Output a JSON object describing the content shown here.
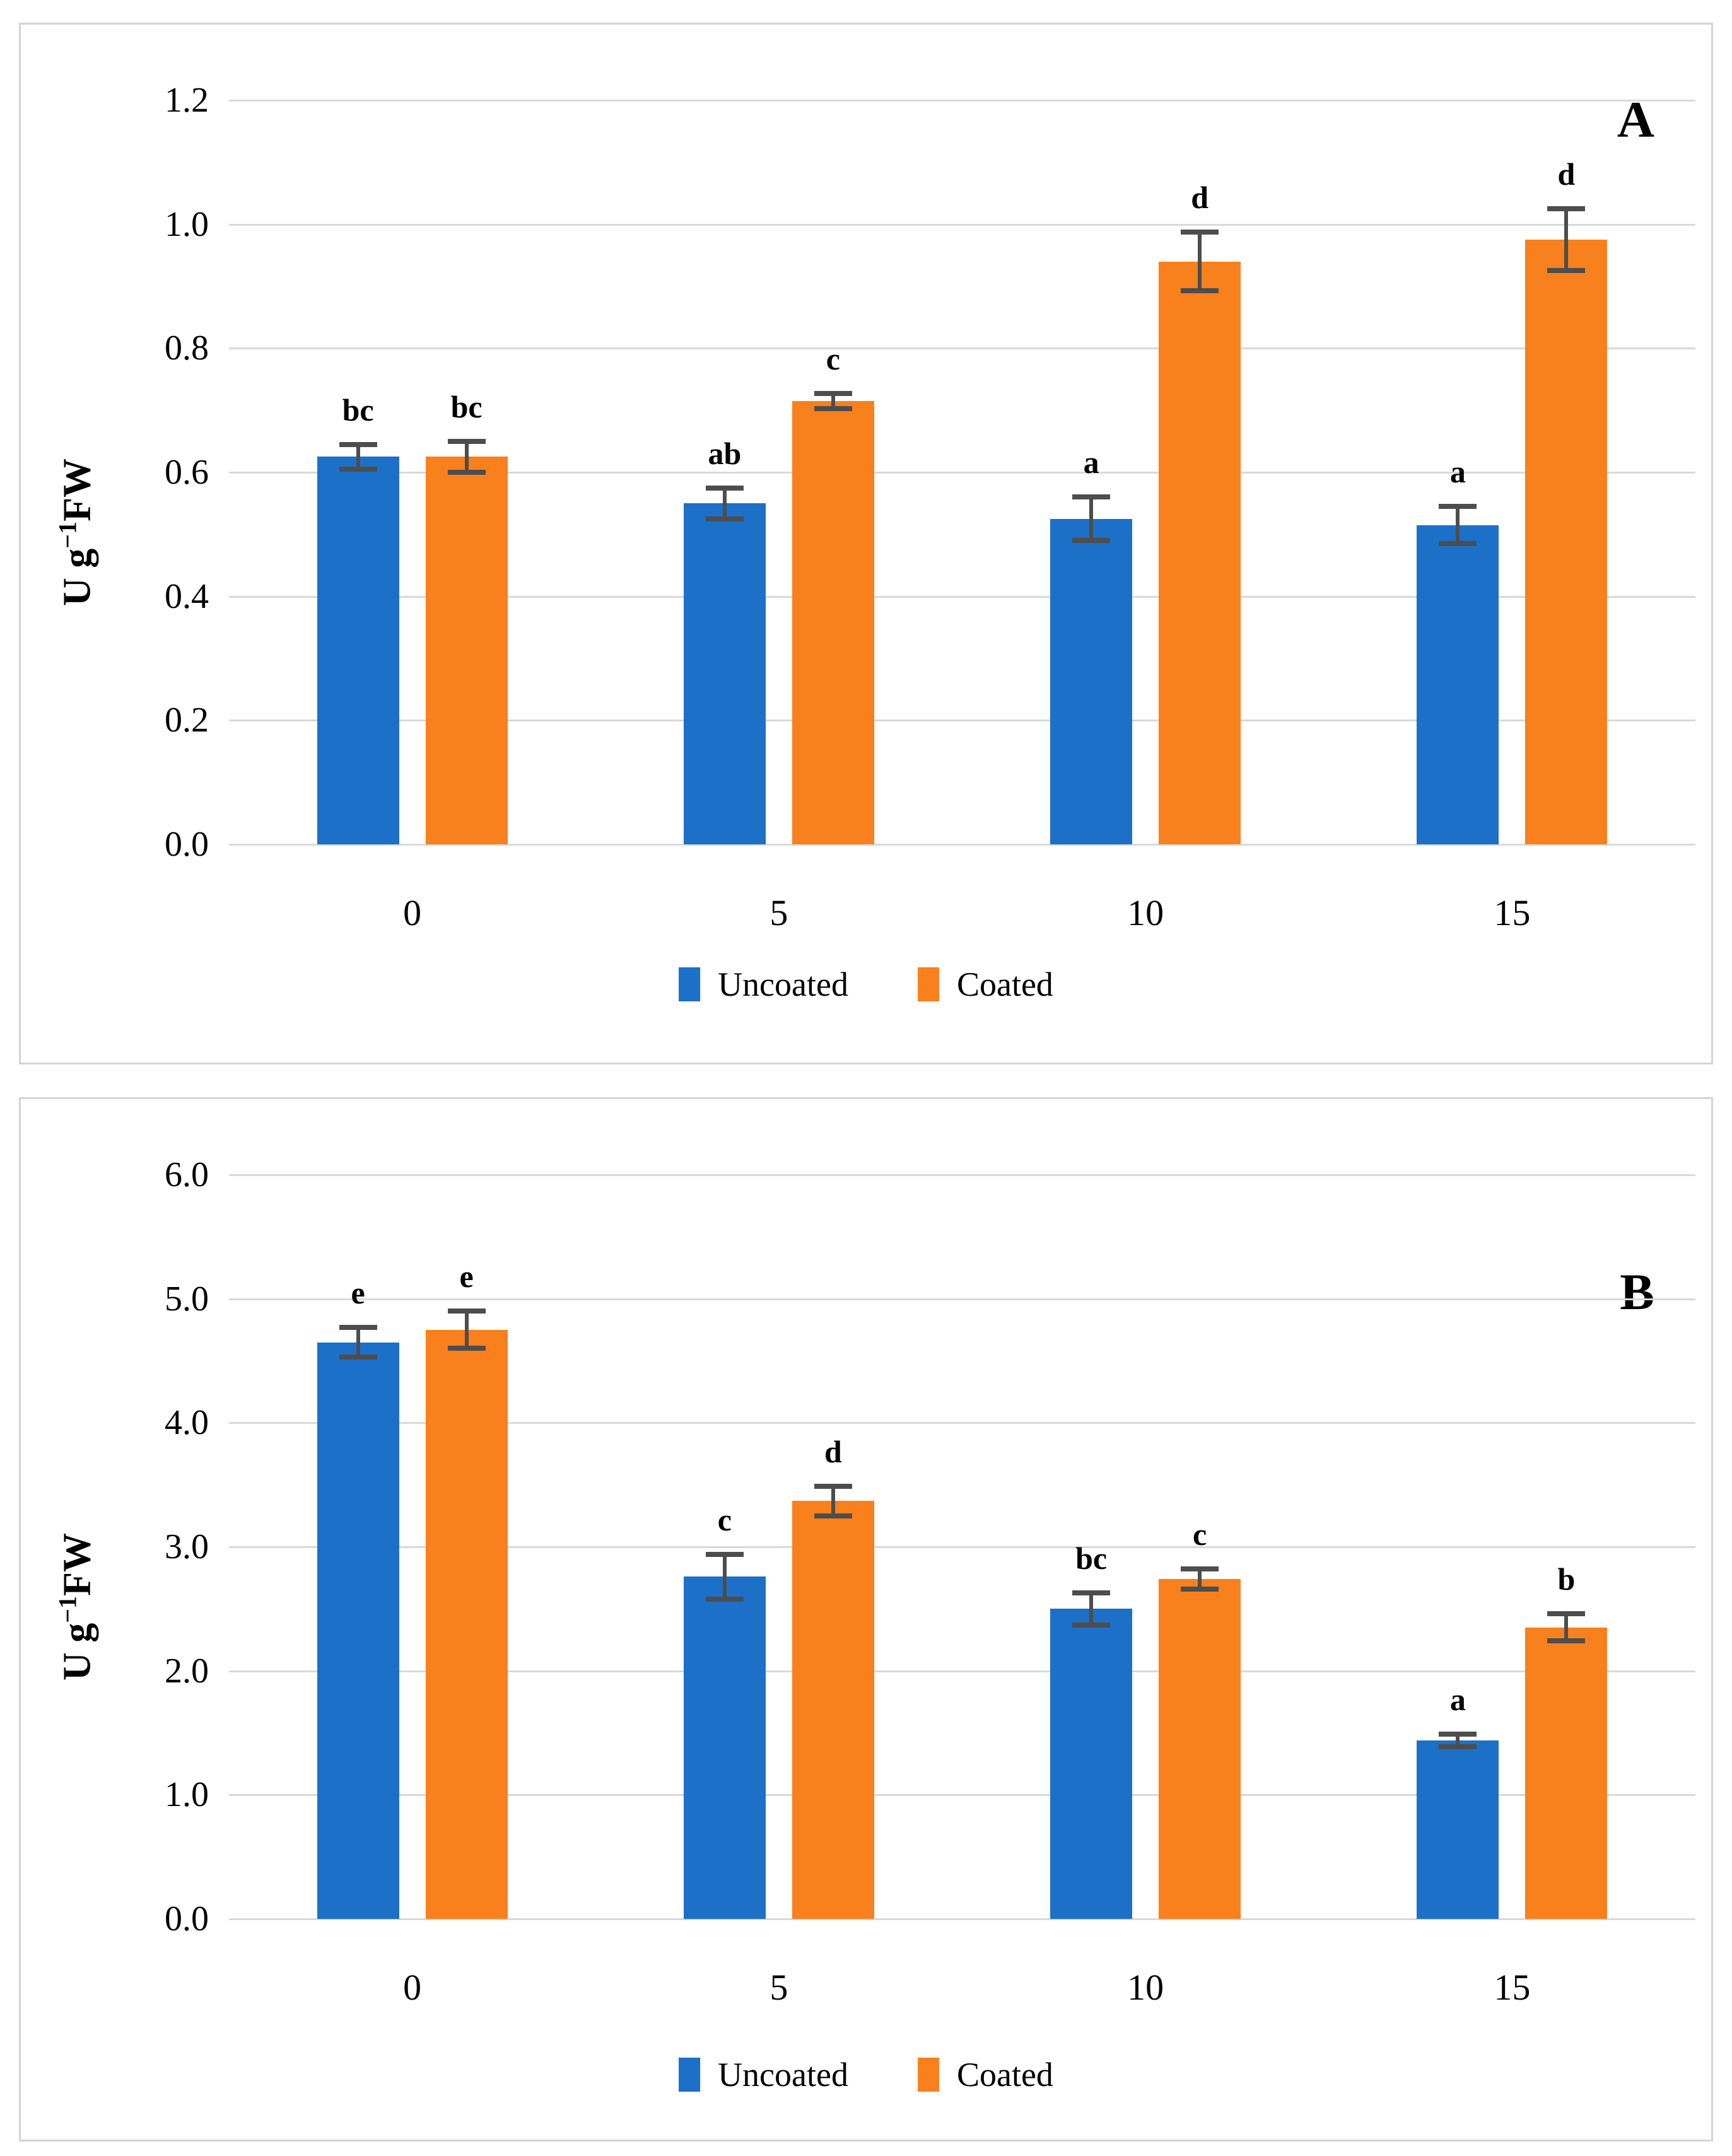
{
  "page": {
    "background": "#ffffff",
    "panel_border_color": "#d6d4d4",
    "gridline_color": "#d9d9d9",
    "error_bar_color": "#4d4d4d"
  },
  "axis": {
    "title_prefix": "U g",
    "title_superscript": "−1",
    "title_suffix": "FW"
  },
  "legend": {
    "items": [
      {
        "label": "Uncoated",
        "color": "#1c70c8"
      },
      {
        "label": "Coated",
        "color": "#f8801d"
      }
    ]
  },
  "chart_data": [
    {
      "type": "bar",
      "panel_label": "A",
      "title": "",
      "xlabel": "",
      "ylabel": "U g⁻¹FW",
      "ylim": [
        0,
        1.2
      ],
      "ytick_labels": [
        "0.0",
        "0.2",
        "0.4",
        "0.6",
        "0.8",
        "1.0",
        "1.2"
      ],
      "grid": true,
      "legend_position": "bottom",
      "categories": [
        "0",
        "5",
        "10",
        "15"
      ],
      "series": [
        {
          "name": "Uncoated",
          "color": "#1c70c8",
          "values": [
            0.625,
            0.55,
            0.525,
            0.515
          ],
          "errors": [
            0.02,
            0.025,
            0.035,
            0.03
          ],
          "letters": [
            "bc",
            "ab",
            "a",
            "a"
          ]
        },
        {
          "name": "Coated",
          "color": "#f8801d",
          "values": [
            0.625,
            0.715,
            0.94,
            0.975
          ],
          "errors": [
            0.025,
            0.012,
            0.047,
            0.05
          ],
          "letters": [
            "bc",
            "c",
            "d",
            "d"
          ]
        }
      ]
    },
    {
      "type": "bar",
      "panel_label": "B",
      "title": "",
      "xlabel": "",
      "ylabel": "U g⁻¹FW",
      "ylim": [
        0,
        6.0
      ],
      "ytick_labels": [
        "0.0",
        "1.0",
        "2.0",
        "3.0",
        "4.0",
        "5.0",
        "6.0"
      ],
      "grid": true,
      "legend_position": "bottom",
      "categories": [
        "0",
        "5",
        "10",
        "15"
      ],
      "series": [
        {
          "name": "Uncoated",
          "color": "#1c70c8",
          "values": [
            4.65,
            2.76,
            2.5,
            1.44
          ],
          "errors": [
            0.12,
            0.18,
            0.13,
            0.05
          ],
          "letters": [
            "e",
            "c",
            "bc",
            "a"
          ]
        },
        {
          "name": "Coated",
          "color": "#f8801d",
          "values": [
            4.75,
            3.37,
            2.74,
            2.35
          ],
          "errors": [
            0.15,
            0.12,
            0.08,
            0.11
          ],
          "letters": [
            "e",
            "d",
            "c",
            "b"
          ]
        }
      ]
    }
  ]
}
